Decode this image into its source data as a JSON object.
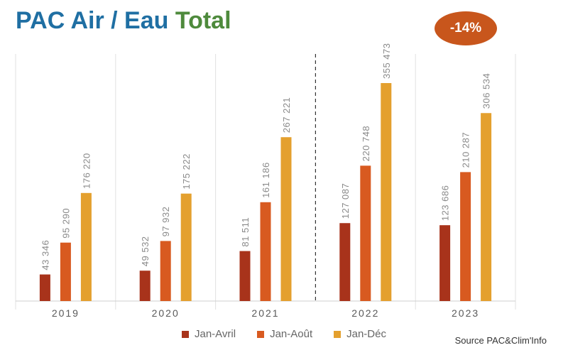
{
  "title": {
    "part1": "PAC Air / Eau",
    "part2": "Total"
  },
  "badge": "-14%",
  "source": "Source PAC&Clim'Info",
  "colors": {
    "jan_avril": "#a8331b",
    "jan_aout": "#d85a20",
    "jan_dec": "#e4a02e",
    "title_blue": "#1f6fa3",
    "title_green": "#4e8a3c",
    "badge": "#c8561c"
  },
  "chart_data": {
    "type": "bar",
    "categories": [
      "2019",
      "2020",
      "2021",
      "2022",
      "2023"
    ],
    "series": [
      {
        "name": "Jan-Avril",
        "values": [
          43346,
          49532,
          81511,
          127087,
          123686
        ],
        "labels": [
          "43 346",
          "49 532",
          "81 511",
          "127 087",
          "123 686"
        ]
      },
      {
        "name": "Jan-Août",
        "values": [
          95290,
          97932,
          161186,
          220748,
          210287
        ],
        "labels": [
          "95 290",
          "97 932",
          "161 186",
          "220 748",
          "210 287"
        ]
      },
      {
        "name": "Jan-Déc",
        "values": [
          176220,
          175222,
          267221,
          355473,
          306534
        ],
        "labels": [
          "176 220",
          "175 222",
          "267 221",
          "355 473",
          "306 534"
        ]
      }
    ],
    "ylim": [
      0,
      355473
    ],
    "grid": false,
    "legend_position": "bottom",
    "separator_between": [
      "2021",
      "2022"
    ]
  }
}
